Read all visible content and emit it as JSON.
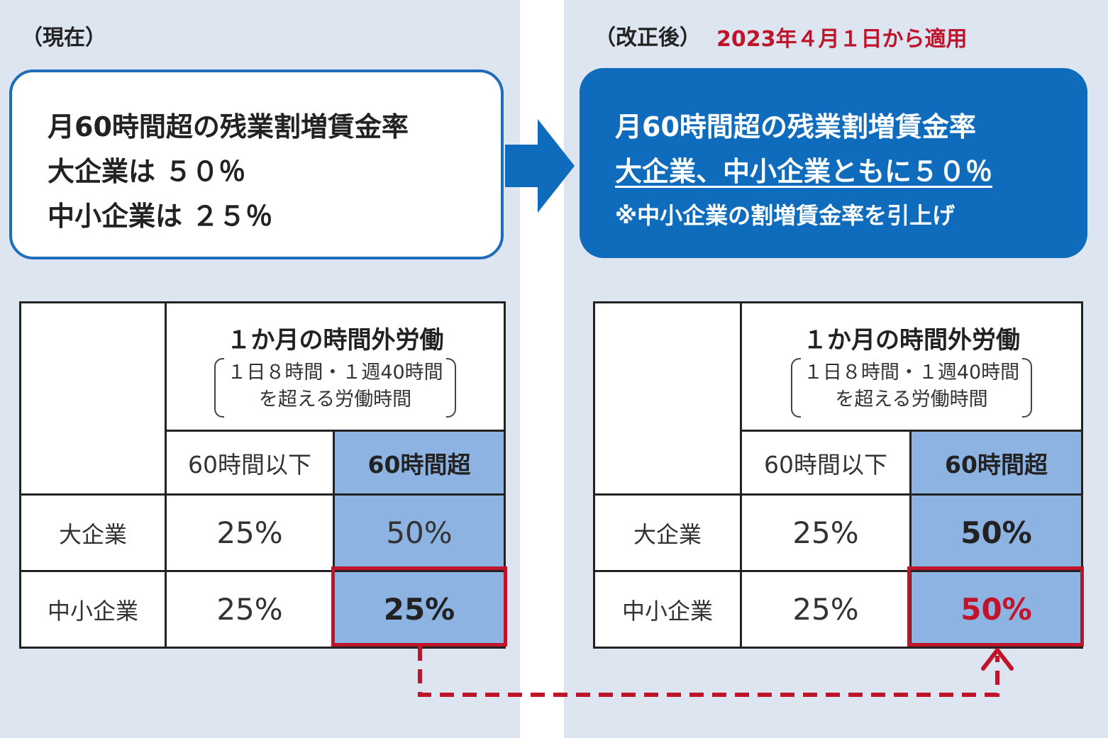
{
  "colors": {
    "panel_bg": "#dde5f1",
    "accent_blue": "#0f6cbd",
    "highlight_cell": "#8db3e2",
    "emphasis_red": "#c0142b"
  },
  "current": {
    "label": "（現在）",
    "summary": {
      "line1": "月60時間超の残業割増賃金率",
      "line2": "大企業は ５０％",
      "line3": "中小企業は ２５％"
    },
    "table": {
      "header_main": "１か月の時間外労働",
      "header_sub1": "１日８時間・１週40時間",
      "header_sub2": "を超える労働時間",
      "col1": "60時間以下",
      "col2": "60時間超",
      "rows": [
        {
          "label": "大企業",
          "under60": "25%",
          "over60": "50%"
        },
        {
          "label": "中小企業",
          "under60": "25%",
          "over60": "25%"
        }
      ]
    }
  },
  "revised": {
    "label": "（改正後）",
    "effective_date": "2023年４月１日から適用",
    "summary": {
      "line1": "月60時間超の残業割増賃金率",
      "line2": "大企業、中小企業ともに５０％",
      "line3": "※中小企業の割増賃金率を引上げ"
    },
    "table": {
      "header_main": "１か月の時間外労働",
      "header_sub1": "１日８時間・１週40時間",
      "header_sub2": "を超える労働時間",
      "col1": "60時間以下",
      "col2": "60時間超",
      "rows": [
        {
          "label": "大企業",
          "under60": "25%",
          "over60": "50%"
        },
        {
          "label": "中小企業",
          "under60": "25%",
          "over60": "50%"
        }
      ]
    }
  },
  "icons": {
    "transition_arrow": "arrow-right-icon",
    "change_arrow": "dashed-arrow-icon"
  }
}
